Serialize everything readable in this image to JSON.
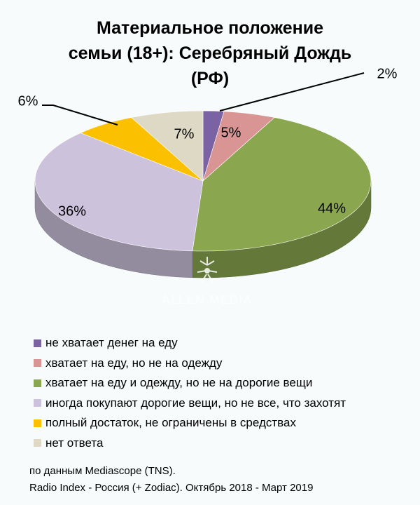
{
  "chart_data": {
    "type": "pie",
    "title_lines": [
      "Материальное положение",
      "семьи (18+): Серебряный Дождь",
      "(РФ)"
    ],
    "slices": [
      {
        "label": "не хватает денег на еду",
        "value": 2,
        "value_label": "2%",
        "color": "#7b62a3"
      },
      {
        "label": "хватает на еду, но не на одежду",
        "value": 5,
        "value_label": "5%",
        "color": "#d99594"
      },
      {
        "label": "хватает на еду и одежду, но не на дорогие вещи",
        "value": 44,
        "value_label": "44%",
        "color": "#8aa64f"
      },
      {
        "label": "иногда покупают дорогие вещи, но не все, что захотят",
        "value": 36,
        "value_label": "36%",
        "color": "#ccc2dc"
      },
      {
        "label": "полный достаток, не ограничены в средствах",
        "value": 6,
        "value_label": "6%",
        "color": "#fbc100"
      },
      {
        "label": "нет ответа",
        "value": 7,
        "value_label": "7%",
        "color": "#ddd9c4"
      }
    ],
    "legend_position": "bottom",
    "style": "3d-pie"
  },
  "watermark": "ALLEN MEDIA",
  "source_lines": [
    "по данным Mediascope (TNS).",
    "Radio Index - Россия (+ Zodiac). Октябрь 2018 - Март 2019"
  ]
}
